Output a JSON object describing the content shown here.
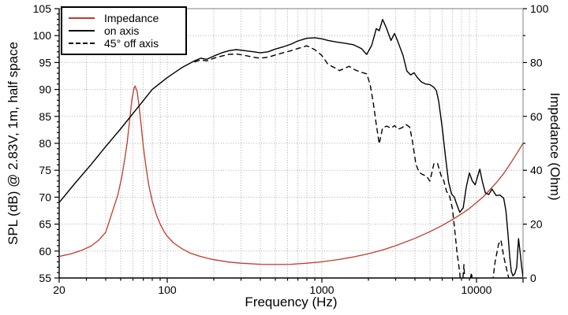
{
  "legend": {
    "items": [
      {
        "label": "Impedance",
        "color": "#c03a2d",
        "line_style": "solid"
      },
      {
        "label": "on axis",
        "color": "#000000",
        "line_style": "solid"
      },
      {
        "label": "45° off axis",
        "color": "#000000",
        "line_style": "dashed"
      }
    ]
  },
  "axes": {
    "x": {
      "label": "Frequency (Hz)",
      "scale": "log",
      "min": 20,
      "max": 20000,
      "labeled_ticks": [
        "20",
        "100",
        "1000",
        "10000"
      ]
    },
    "y_left": {
      "label": "SPL (dB) @ 2.83V, 1m, half space",
      "min": 55,
      "max": 105,
      "ticks": [
        55,
        60,
        65,
        70,
        75,
        80,
        85,
        90,
        95,
        100,
        105
      ]
    },
    "y_right": {
      "label": "Impedance (Ohm)",
      "min": 0,
      "max": 100,
      "ticks": [
        0,
        20,
        40,
        60,
        80,
        100
      ]
    }
  },
  "chart_data": {
    "type": "line",
    "x_scale": "log",
    "xlim": [
      20,
      20000
    ],
    "ylim_left": [
      55,
      105
    ],
    "ylim_right": [
      0,
      100
    ],
    "grid": "dotted",
    "legend_position": "top-left",
    "series": [
      {
        "name": "Impedance",
        "axis": "right",
        "unit": "Ohm",
        "color": "#c03a2d",
        "style": "solid",
        "width": 1.3,
        "points": [
          [
            20,
            8
          ],
          [
            24,
            9
          ],
          [
            28,
            10.3
          ],
          [
            32,
            11.8
          ],
          [
            36,
            14
          ],
          [
            40,
            17
          ],
          [
            45,
            26
          ],
          [
            48,
            31
          ],
          [
            51,
            38
          ],
          [
            53,
            44
          ],
          [
            55,
            50
          ],
          [
            57,
            58
          ],
          [
            59,
            66
          ],
          [
            61,
            70.5
          ],
          [
            62,
            71.3
          ],
          [
            64,
            69
          ],
          [
            66,
            63
          ],
          [
            68,
            56
          ],
          [
            70,
            49
          ],
          [
            73,
            41
          ],
          [
            76,
            34.5
          ],
          [
            80,
            28.5
          ],
          [
            85,
            23.5
          ],
          [
            90,
            20
          ],
          [
            96,
            17
          ],
          [
            100,
            15.5
          ],
          [
            110,
            13
          ],
          [
            125,
            10.8
          ],
          [
            140,
            9.3
          ],
          [
            160,
            8.2
          ],
          [
            180,
            7.4
          ],
          [
            200,
            6.8
          ],
          [
            250,
            5.9
          ],
          [
            300,
            5.5
          ],
          [
            400,
            5.1
          ],
          [
            500,
            5
          ],
          [
            630,
            5.1
          ],
          [
            800,
            5.5
          ],
          [
            1000,
            6
          ],
          [
            1300,
            6.9
          ],
          [
            1600,
            7.8
          ],
          [
            2000,
            9
          ],
          [
            2500,
            10.5
          ],
          [
            3000,
            12
          ],
          [
            4000,
            14.7
          ],
          [
            5000,
            17.2
          ],
          [
            6000,
            19.5
          ],
          [
            7000,
            21.7
          ],
          [
            8000,
            23.8
          ],
          [
            9000,
            25.8
          ],
          [
            10000,
            28
          ],
          [
            11000,
            30
          ],
          [
            12000,
            32.3
          ],
          [
            13500,
            35.5
          ],
          [
            15000,
            38.8
          ],
          [
            16500,
            42.3
          ],
          [
            18000,
            45.7
          ],
          [
            20000,
            50
          ]
        ]
      },
      {
        "name": "on axis",
        "axis": "left",
        "unit": "dB",
        "color": "#000000",
        "style": "solid",
        "width": 1.4,
        "points": [
          [
            20,
            69
          ],
          [
            25,
            72.4
          ],
          [
            32,
            76
          ],
          [
            40,
            79.4
          ],
          [
            50,
            82.7
          ],
          [
            63,
            86.3
          ],
          [
            80,
            90
          ],
          [
            100,
            92.2
          ],
          [
            125,
            94.1
          ],
          [
            150,
            95.3
          ],
          [
            165,
            95.8
          ],
          [
            180,
            95.6
          ],
          [
            200,
            96.2
          ],
          [
            225,
            96.8
          ],
          [
            250,
            97.2
          ],
          [
            280,
            97.4
          ],
          [
            320,
            97.2
          ],
          [
            360,
            97
          ],
          [
            400,
            96.8
          ],
          [
            450,
            97
          ],
          [
            500,
            97.5
          ],
          [
            560,
            97.9
          ],
          [
            630,
            98.4
          ],
          [
            700,
            99
          ],
          [
            800,
            99.5
          ],
          [
            900,
            99.6
          ],
          [
            1000,
            99.4
          ],
          [
            1100,
            99.1
          ],
          [
            1250,
            98.8
          ],
          [
            1400,
            98.6
          ],
          [
            1600,
            98.3
          ],
          [
            1800,
            97.6
          ],
          [
            1950,
            96.5
          ],
          [
            2100,
            98.2
          ],
          [
            2250,
            101.3
          ],
          [
            2350,
            100.9
          ],
          [
            2470,
            103
          ],
          [
            2600,
            101.6
          ],
          [
            2800,
            99.1
          ],
          [
            2950,
            100.4
          ],
          [
            3100,
            98.9
          ],
          [
            3350,
            96.3
          ],
          [
            3550,
            93.4
          ],
          [
            3750,
            92.7
          ],
          [
            3950,
            93.1
          ],
          [
            4150,
            92.2
          ],
          [
            4400,
            91.4
          ],
          [
            4700,
            91
          ],
          [
            5000,
            90.9
          ],
          [
            5300,
            90.4
          ],
          [
            5500,
            89.8
          ],
          [
            5700,
            87.8
          ],
          [
            6000,
            83
          ],
          [
            6300,
            77.5
          ],
          [
            6600,
            72.8
          ],
          [
            6900,
            70.6
          ],
          [
            7200,
            70
          ],
          [
            7400,
            68.9
          ],
          [
            7800,
            67.2
          ],
          [
            8200,
            68
          ],
          [
            8600,
            72
          ],
          [
            9000,
            74.5
          ],
          [
            9400,
            73
          ],
          [
            9800,
            72.3
          ],
          [
            10200,
            74
          ],
          [
            10500,
            75.2
          ],
          [
            10900,
            73
          ],
          [
            11400,
            70.8
          ],
          [
            12000,
            70.5
          ],
          [
            12600,
            71.5
          ],
          [
            13400,
            70.3
          ],
          [
            14200,
            70.4
          ],
          [
            15000,
            69.8
          ],
          [
            15500,
            67.5
          ],
          [
            16000,
            63
          ],
          [
            16400,
            59
          ],
          [
            16800,
            56.2
          ],
          [
            17200,
            55.4
          ],
          [
            17700,
            55.8
          ],
          [
            18200,
            57
          ],
          [
            18700,
            62.3
          ],
          [
            19200,
            59.5
          ],
          [
            19600,
            57
          ],
          [
            20000,
            55.2
          ]
        ]
      },
      {
        "name": "45° off axis",
        "axis": "left",
        "unit": "dB",
        "color": "#000000",
        "style": "dashed",
        "width": 1.4,
        "points": [
          [
            150,
            95.1
          ],
          [
            165,
            95.5
          ],
          [
            180,
            95.3
          ],
          [
            200,
            95.8
          ],
          [
            225,
            96.2
          ],
          [
            250,
            96.5
          ],
          [
            280,
            96.6
          ],
          [
            320,
            96.3
          ],
          [
            360,
            96
          ],
          [
            400,
            95.8
          ],
          [
            450,
            96
          ],
          [
            500,
            96.4
          ],
          [
            560,
            96.8
          ],
          [
            630,
            97.2
          ],
          [
            700,
            97.6
          ],
          [
            800,
            98.1
          ],
          [
            900,
            97.4
          ],
          [
            1000,
            96.3
          ],
          [
            1100,
            94.6
          ],
          [
            1200,
            94.1
          ],
          [
            1300,
            93.5
          ],
          [
            1400,
            93.9
          ],
          [
            1500,
            94.3
          ],
          [
            1650,
            93.6
          ],
          [
            1800,
            93.2
          ],
          [
            1950,
            92.9
          ],
          [
            2050,
            91
          ],
          [
            2150,
            87.5
          ],
          [
            2250,
            83.5
          ],
          [
            2350,
            79.9
          ],
          [
            2470,
            82.9
          ],
          [
            2630,
            83.2
          ],
          [
            2800,
            82.8
          ],
          [
            2950,
            83.3
          ],
          [
            3100,
            82.6
          ],
          [
            3300,
            82.9
          ],
          [
            3500,
            83.5
          ],
          [
            3700,
            83
          ],
          [
            3850,
            80.5
          ],
          [
            4050,
            76.2
          ],
          [
            4250,
            74.6
          ],
          [
            4500,
            74.2
          ],
          [
            4750,
            73.9
          ],
          [
            5000,
            73
          ],
          [
            5300,
            76.2
          ],
          [
            5600,
            76.3
          ],
          [
            5900,
            74
          ],
          [
            6100,
            73.4
          ],
          [
            6400,
            71.1
          ],
          [
            6700,
            70.2
          ],
          [
            7000,
            67.8
          ],
          [
            7200,
            64.5
          ],
          [
            7500,
            59.5
          ],
          [
            7800,
            56
          ],
          [
            8000,
            51.5
          ],
          [
            8300,
            57.5
          ],
          [
            8500,
            51
          ],
          [
            9300,
            56
          ],
          [
            9600,
            50
          ],
          [
            12600,
            53.5
          ],
          [
            13200,
            58
          ],
          [
            13900,
            61.3
          ],
          [
            14400,
            62
          ],
          [
            15000,
            59
          ],
          [
            15700,
            56.5
          ],
          [
            16300,
            54.5
          ]
        ]
      }
    ]
  }
}
